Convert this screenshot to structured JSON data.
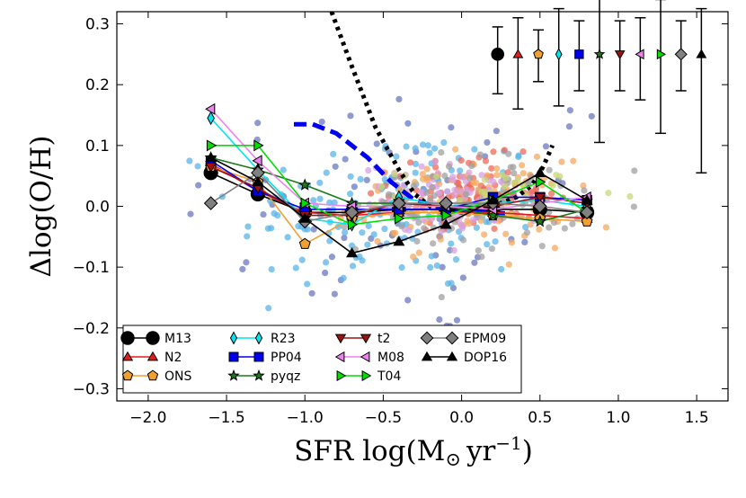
{
  "chart_data": {
    "type": "scatter",
    "xlabel": "SFR log(M",
    "xlabel_sub": "⊙",
    "xlabel_unit": "yr",
    "xlabel_exp": "−1",
    "xlabel_close": ")",
    "ylabel": "Δlog(O/H)",
    "xlim": [
      -2.2,
      1.7
    ],
    "ylim": [
      -0.32,
      0.32
    ],
    "xticks": [
      -2.0,
      -1.5,
      -1.0,
      -0.5,
      0.0,
      0.5,
      1.0,
      1.5
    ],
    "xtick_labels": [
      "−2.0",
      "−1.5",
      "−1.0",
      "−0.5",
      "0.0",
      "0.5",
      "1.0",
      "1.5"
    ],
    "yticks": [
      -0.3,
      -0.2,
      -0.1,
      0.0,
      0.1,
      0.2,
      0.3
    ],
    "ytick_labels": [
      "−0.3",
      "−0.2",
      "−0.1",
      "0.0",
      "0.1",
      "0.2",
      "0.3"
    ],
    "legend_position": "lower-left",
    "x_bins": [
      -1.6,
      -1.3,
      -1.0,
      -0.7,
      -0.4,
      -0.1,
      0.2,
      0.5,
      0.8
    ],
    "series": [
      {
        "name": "M13",
        "color": "#000000",
        "marker": "circle",
        "values": [
          0.055,
          0.02,
          -0.01,
          -0.01,
          -0.005,
          -0.005,
          -0.005,
          -0.005,
          -0.01
        ]
      },
      {
        "name": "N2",
        "color": "#e41a1c",
        "marker": "triangle-up",
        "values": [
          0.07,
          0.025,
          -0.01,
          -0.015,
          -0.01,
          -0.01,
          -0.01,
          -0.015,
          -0.02
        ]
      },
      {
        "name": "ONS",
        "color": "#f0a030",
        "marker": "pentagon",
        "values": [
          0.065,
          0.04,
          -0.062,
          -0.02,
          -0.01,
          -0.01,
          -0.015,
          -0.02,
          -0.025
        ]
      },
      {
        "name": "R23",
        "color": "#00e5ee",
        "marker": "thin-diamond",
        "values": [
          0.145,
          0.06,
          -0.02,
          -0.03,
          0.015,
          0.0,
          0.005,
          0.01,
          0.0
        ]
      },
      {
        "name": "PP04",
        "color": "#0000ee",
        "marker": "square",
        "values": [
          0.075,
          0.025,
          -0.005,
          -0.005,
          -0.005,
          -0.005,
          0.015,
          0.015,
          0.01
        ]
      },
      {
        "name": "pyqz",
        "color": "#1a7a1a",
        "marker": "star",
        "values": [
          0.08,
          0.06,
          0.035,
          0.005,
          0.005,
          0.0,
          -0.015,
          -0.025,
          -0.005
        ]
      },
      {
        "name": "t2",
        "color": "#a01010",
        "marker": "triangle-down",
        "values": [
          0.065,
          0.03,
          -0.015,
          -0.015,
          0.005,
          0.0,
          0.0,
          0.015,
          0.005
        ]
      },
      {
        "name": "M08",
        "color": "#ee82ee",
        "marker": "triangle-left",
        "values": [
          0.16,
          0.075,
          0.005,
          0.0,
          0.0,
          0.0,
          -0.005,
          0.005,
          0.015
        ]
      },
      {
        "name": "T04",
        "color": "#00dd00",
        "marker": "triangle-right",
        "values": [
          0.1,
          0.1,
          0.005,
          -0.03,
          -0.02,
          -0.015,
          0.01,
          0.04,
          -0.01
        ]
      },
      {
        "name": "EPM09",
        "color": "#808080",
        "marker": "diamond",
        "values": [
          0.005,
          0.055,
          -0.025,
          -0.01,
          0.005,
          0.005,
          0.005,
          0.0,
          -0.01
        ]
      },
      {
        "name": "DOP16",
        "color": "#000000",
        "marker": "triangle-up",
        "values": [
          0.08,
          0.04,
          -0.02,
          -0.077,
          -0.058,
          -0.03,
          0.01,
          0.055,
          0.01
        ]
      }
    ],
    "error_bars": [
      {
        "name": "M13",
        "x": 0.23,
        "y": 0.25,
        "err_low": 0.065,
        "err_high": 0.045
      },
      {
        "name": "N2",
        "x": 0.36,
        "y": 0.25,
        "err_low": 0.09,
        "err_high": 0.06
      },
      {
        "name": "ONS",
        "x": 0.49,
        "y": 0.25,
        "err_low": 0.045,
        "err_high": 0.04
      },
      {
        "name": "R23",
        "x": 0.62,
        "y": 0.25,
        "err_low": 0.085,
        "err_high": 0.075
      },
      {
        "name": "PP04",
        "x": 0.75,
        "y": 0.25,
        "err_low": 0.06,
        "err_high": 0.055
      },
      {
        "name": "pyqz",
        "x": 0.88,
        "y": 0.25,
        "err_low": 0.145,
        "err_high": 0.105
      },
      {
        "name": "t2",
        "x": 1.01,
        "y": 0.25,
        "err_low": 0.06,
        "err_high": 0.055
      },
      {
        "name": "M08",
        "x": 1.14,
        "y": 0.25,
        "err_low": 0.075,
        "err_high": 0.06
      },
      {
        "name": "T04",
        "x": 1.27,
        "y": 0.25,
        "err_low": 0.13,
        "err_high": 0.09
      },
      {
        "name": "EPM09",
        "x": 1.4,
        "y": 0.25,
        "err_low": 0.06,
        "err_high": 0.055
      },
      {
        "name": "DOP16",
        "x": 1.53,
        "y": 0.25,
        "err_low": 0.195,
        "err_high": 0.075
      }
    ],
    "curves": [
      {
        "name": "dotted-model",
        "color": "#000000",
        "style": "dotted",
        "points": [
          [
            -0.83,
            0.32
          ],
          [
            -0.7,
            0.23
          ],
          [
            -0.55,
            0.13
          ],
          [
            -0.4,
            0.06
          ],
          [
            -0.3,
            0.02
          ],
          [
            -0.2,
            0.0
          ],
          [
            0.0,
            -0.01
          ],
          [
            0.2,
            0.0
          ],
          [
            0.35,
            0.015
          ],
          [
            0.45,
            0.035
          ],
          [
            0.52,
            0.065
          ],
          [
            0.58,
            0.1
          ]
        ]
      },
      {
        "name": "dashed-model",
        "color": "#0000ee",
        "style": "dashed",
        "points": [
          [
            -1.07,
            0.135
          ],
          [
            -0.95,
            0.135
          ],
          [
            -0.8,
            0.12
          ],
          [
            -0.6,
            0.08
          ],
          [
            -0.45,
            0.04
          ],
          [
            -0.3,
            0.01
          ],
          [
            -0.15,
            -0.002
          ],
          [
            0.0,
            -0.007
          ],
          [
            0.15,
            -0.01
          ],
          [
            0.3,
            -0.012
          ]
        ]
      }
    ],
    "scatter_clouds": [
      {
        "name": "M13-points",
        "color": "#6a78c0",
        "n": 70,
        "cx": -0.3,
        "sx": 0.75,
        "cy": -0.01,
        "sy": 0.11
      },
      {
        "name": "R23-points",
        "color": "#5ab4e8",
        "n": 150,
        "cx": -0.45,
        "sx": 0.5,
        "cy": -0.005,
        "sy": 0.07
      },
      {
        "name": "N2-points",
        "color": "#ee6a5a",
        "n": 120,
        "cx": 0.05,
        "sx": 0.25,
        "cy": 0.02,
        "sy": 0.03
      },
      {
        "name": "ONS-points",
        "color": "#f5a860",
        "n": 110,
        "cx": 0.0,
        "sx": 0.33,
        "cy": 0.005,
        "sy": 0.035
      },
      {
        "name": "M08-points",
        "color": "#d8a0e0",
        "n": 90,
        "cx": -0.05,
        "sx": 0.3,
        "cy": 0.01,
        "sy": 0.03
      },
      {
        "name": "EPM09-points",
        "color": "#a0a0a0",
        "n": 90,
        "cx": 0.05,
        "sx": 0.35,
        "cy": 0.005,
        "sy": 0.04
      },
      {
        "name": "T04-points",
        "color": "#c8d878",
        "n": 40,
        "cx": 0.2,
        "sx": 0.3,
        "cy": 0.02,
        "sy": 0.02
      }
    ]
  }
}
